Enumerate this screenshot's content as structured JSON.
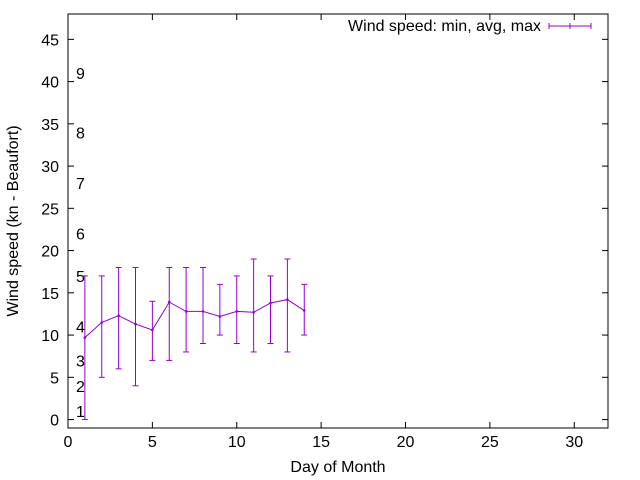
{
  "chart_data": {
    "type": "line",
    "title": "",
    "xlabel": "Day of Month",
    "ylabel": "Wind speed (kn - Beaufort)",
    "xlim": [
      0,
      32
    ],
    "ylim": [
      -1,
      48
    ],
    "xticks": [
      0,
      5,
      10,
      15,
      20,
      25,
      30
    ],
    "yticks": [
      0,
      5,
      10,
      15,
      20,
      25,
      30,
      35,
      40,
      45
    ],
    "grid": false,
    "legend_position": "top-right",
    "series": [
      {
        "name": "Wind speed: min, avg, max",
        "color": "#9400d3",
        "x": [
          1,
          2,
          3,
          4,
          5,
          6,
          7,
          8,
          9,
          10,
          11,
          12,
          13,
          14
        ],
        "avg": [
          9.7,
          11.5,
          12.3,
          11.3,
          10.6,
          13.9,
          12.8,
          12.8,
          12.2,
          12.8,
          12.7,
          13.8,
          14.2,
          12.9
        ],
        "min": [
          0,
          5,
          6,
          4,
          7,
          7,
          8,
          9,
          10,
          9,
          8,
          9,
          8,
          10
        ],
        "max": [
          17,
          17,
          18,
          18,
          14,
          18,
          18,
          18,
          16,
          17,
          19,
          17,
          19,
          16
        ]
      }
    ],
    "beaufort_labels": [
      {
        "text": "1",
        "y": 1
      },
      {
        "text": "2",
        "y": 4
      },
      {
        "text": "3",
        "y": 7
      },
      {
        "text": "4",
        "y": 11
      },
      {
        "text": "5",
        "y": 17
      },
      {
        "text": "6",
        "y": 22
      },
      {
        "text": "7",
        "y": 28
      },
      {
        "text": "8",
        "y": 34
      },
      {
        "text": "9",
        "y": 41
      }
    ]
  }
}
